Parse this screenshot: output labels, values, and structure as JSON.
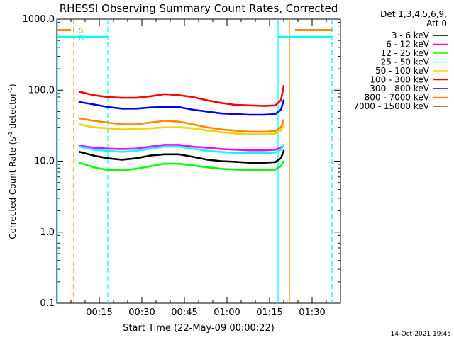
{
  "chart_data": {
    "type": "line",
    "title": "RHESSI Observing Summary Count Rates, Corrected",
    "xlabel": "Start Time (22-May-09 00:00:22)",
    "ylabel_main": "Corrected Count Rate (s",
    "ylabel_sup1": "-1",
    "ylabel_mid": " detector",
    "ylabel_sup2": "-1",
    "ylabel_end": ")",
    "yscale": "log",
    "ylim": [
      0.1,
      1000
    ],
    "xlim_minutes": [
      0,
      100
    ],
    "x_ticks": [
      {
        "minute": 15,
        "label": "00:15"
      },
      {
        "minute": 30,
        "label": "00:30"
      },
      {
        "minute": 45,
        "label": "00:45"
      },
      {
        "minute": 60,
        "label": "01:00"
      },
      {
        "minute": 75,
        "label": "01:15"
      },
      {
        "minute": 90,
        "label": "01:30"
      }
    ],
    "y_ticks": [
      {
        "value": 1000,
        "label": "1000.0"
      },
      {
        "value": 100,
        "label": "100.0"
      },
      {
        "value": 10,
        "label": "10.0"
      },
      {
        "value": 1,
        "label": "1.0"
      },
      {
        "value": 0.1,
        "label": "0.1"
      }
    ],
    "legend_header": [
      "Det 1,3,4,5,6,9,",
      "Att 0"
    ],
    "legend_placement": "right",
    "footer_date": "14-Oct-2021 19:45",
    "x_minutes": [
      8,
      13,
      18,
      23,
      28,
      33,
      38,
      43,
      48,
      53,
      58,
      63,
      68,
      73,
      77,
      79,
      80
    ],
    "series": [
      {
        "name": "3 - 6 keV",
        "color": "#000000",
        "values": [
          13.5,
          12,
          11,
          10.5,
          11,
          12,
          12.5,
          12.5,
          11.5,
          10.5,
          10,
          9.8,
          9.5,
          9.5,
          9.7,
          11,
          14
        ]
      },
      {
        "name": "6 - 12 keV",
        "color": "#ff00ff",
        "values": [
          16.5,
          15.5,
          15,
          14.8,
          15,
          16,
          17,
          17,
          16,
          15.5,
          14.8,
          14.5,
          14.2,
          14.2,
          14.5,
          15.5,
          17
        ]
      },
      {
        "name": "12 - 25 keV",
        "color": "#00ff00",
        "values": [
          9.5,
          8.2,
          7.5,
          7.4,
          7.8,
          8.5,
          9.2,
          9.2,
          8.7,
          8.2,
          7.8,
          7.6,
          7.5,
          7.5,
          7.6,
          8.5,
          10
        ]
      },
      {
        "name": "25 - 50 keV",
        "color": "#00ffff",
        "values": [
          16,
          14.5,
          14,
          13.5,
          14,
          15,
          16,
          16,
          15,
          14,
          13.5,
          13,
          13,
          13,
          13.2,
          14.5,
          17
        ]
      },
      {
        "name": "50 - 100 keV",
        "color": "#ffd000",
        "values": [
          33,
          30,
          29,
          28,
          28.5,
          29,
          30,
          30,
          29,
          27,
          25.5,
          24.5,
          24,
          24,
          24.5,
          27,
          33
        ]
      },
      {
        "name": "100 - 300 keV",
        "color": "#ff0000",
        "values": [
          95,
          85,
          80,
          78,
          78,
          82,
          88,
          85,
          80,
          72,
          66,
          62,
          61,
          60,
          61,
          72,
          115
        ]
      },
      {
        "name": "300 - 800 keV",
        "color": "#0000ff",
        "values": [
          68,
          63,
          58,
          55,
          55,
          57,
          58,
          58,
          53,
          50,
          47,
          46,
          45,
          45,
          46,
          53,
          72
        ]
      },
      {
        "name": "800 - 7000 keV",
        "color": "#ff8800",
        "values": [
          40,
          37,
          35,
          33,
          33,
          35,
          37,
          36,
          33,
          30,
          28,
          27,
          26,
          26,
          26.5,
          30,
          38
        ]
      },
      {
        "name": "7000 - 15000 keV",
        "color": "#886600",
        "values": [
          null,
          null,
          null,
          null,
          null,
          null,
          null,
          null,
          null,
          null,
          null,
          null,
          null,
          null,
          null,
          null,
          null
        ]
      }
    ],
    "bars": [
      {
        "label": "S",
        "color": "#ff8800",
        "from_minute": 0,
        "to_minute": 5,
        "level": 700
      },
      {
        "label": "",
        "color": "#ff8800",
        "from_minute": 84,
        "to_minute": 97,
        "level": 700
      },
      {
        "label": "N",
        "color": "#00ffff",
        "from_minute": 0,
        "to_minute": 18,
        "level": 560
      },
      {
        "label": "",
        "color": "#00ffff",
        "from_minute": 78,
        "to_minute": 97,
        "level": 560
      }
    ],
    "vlines": [
      {
        "minute": 0,
        "color": "#00ffff",
        "style": "solid"
      },
      {
        "minute": 6,
        "color": "#ff8800",
        "style": "dashed"
      },
      {
        "minute": 18,
        "color": "#00ffff",
        "style": "dashed"
      },
      {
        "minute": 78,
        "color": "#00ffff",
        "style": "solid"
      },
      {
        "minute": 82,
        "color": "#ff8800",
        "style": "solid"
      },
      {
        "minute": 97,
        "color": "#ff8800",
        "style": "dashed"
      },
      {
        "minute": 97,
        "color": "#00ffff",
        "style": "dashed"
      }
    ]
  }
}
